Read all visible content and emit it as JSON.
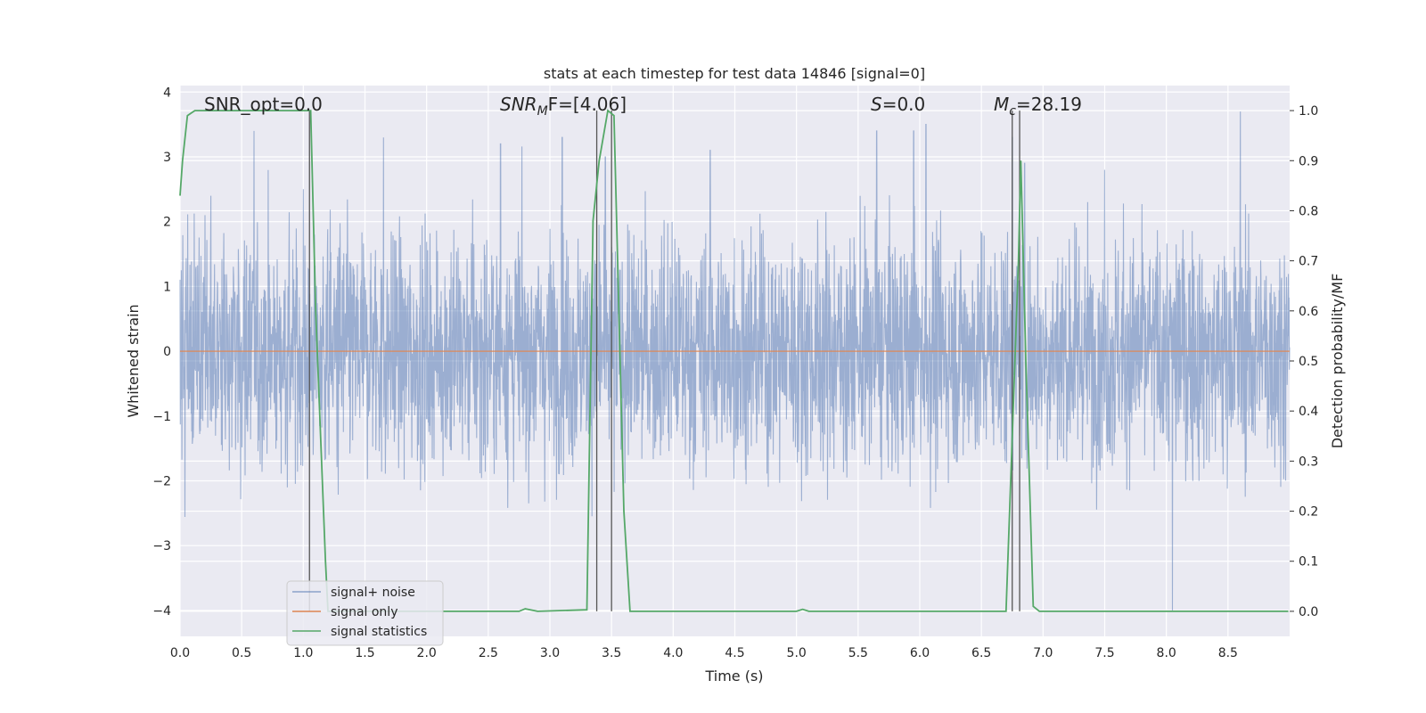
{
  "chart_data": {
    "type": "line",
    "title": "stats at each timestep for test data 14846 [signal=0]",
    "xlabel": "Time (s)",
    "ylabel": "Whitened strain",
    "y2label": "Detection probability/MF",
    "xlim": [
      0,
      9.0
    ],
    "ylim": [
      -4.4,
      4.1
    ],
    "y2lim": [
      -0.05,
      1.05
    ],
    "xticks": [
      "0.0",
      "0.5",
      "1.0",
      "1.5",
      "2.0",
      "2.5",
      "3.0",
      "3.5",
      "4.0",
      "4.5",
      "5.0",
      "5.5",
      "6.0",
      "6.5",
      "7.0",
      "7.5",
      "8.0",
      "8.5"
    ],
    "yticks": [
      "4",
      "3",
      "2",
      "1",
      "0",
      "−1",
      "−2",
      "−3",
      "−4"
    ],
    "y2ticks": [
      "1.0",
      "0.9",
      "0.8",
      "0.7",
      "0.6",
      "0.5",
      "0.4",
      "0.3",
      "0.2",
      "0.1",
      "0.0"
    ],
    "annotations": {
      "snr_opt": "SNR_opt=0.0",
      "snr_mf_prefix": "SNR",
      "snr_mf_sub": "M",
      "snr_mf_suffix": "F=[4.06]",
      "s_symbol": "S",
      "s_value": "=0.0",
      "mc_symbol": "M",
      "mc_sub": "c",
      "mc_value": "=28.19"
    },
    "series": [
      {
        "name": "signal+ noise",
        "color": "#4c72b0",
        "axis": "left",
        "description_noise_sd": 0.9,
        "envelope_peaks_time": [
          0.25,
          0.6,
          1.0,
          1.65,
          2.6,
          3.1,
          3.45,
          4.3,
          5.65,
          5.95,
          6.05,
          6.75,
          6.85,
          7.5,
          8.05,
          8.6
        ],
        "envelope_peaks_value": [
          2.4,
          3.4,
          2.5,
          3.3,
          3.2,
          3.3,
          3.0,
          3.1,
          3.4,
          3.4,
          3.5,
          3.3,
          2.9,
          2.8,
          -4.0,
          3.7
        ]
      },
      {
        "name": "signal only",
        "color": "#dd8452",
        "axis": "left",
        "x": [
          0.0,
          9.0
        ],
        "values": [
          0,
          0
        ]
      },
      {
        "name": "signal statistics",
        "color": "#55a868",
        "axis": "right",
        "x": [
          0.0,
          0.02,
          0.06,
          0.12,
          0.5,
          1.0,
          1.06,
          1.1,
          1.18,
          1.2,
          1.5,
          2.0,
          2.5,
          2.75,
          2.8,
          2.9,
          3.3,
          3.35,
          3.4,
          3.47,
          3.52,
          3.6,
          3.65,
          4.0,
          5.0,
          5.05,
          5.1,
          5.5,
          6.0,
          6.5,
          6.7,
          6.75,
          6.8,
          6.82,
          6.86,
          6.92,
          6.97,
          7.0,
          8.0,
          8.99
        ],
        "values": [
          0.83,
          0.9,
          0.99,
          1.0,
          1.0,
          1.0,
          1.0,
          0.6,
          0.1,
          0.0,
          0.0,
          0.0,
          0.0,
          0.0,
          0.005,
          0.0,
          0.003,
          0.78,
          0.9,
          1.0,
          0.99,
          0.2,
          0.0,
          0.0,
          0.0,
          0.004,
          0.0,
          0.0,
          0.0,
          0.0,
          0.0,
          0.35,
          0.7,
          0.9,
          0.5,
          0.01,
          0.0,
          0.0,
          0.0,
          0.0
        ]
      }
    ],
    "vlines_time": [
      1.05,
      3.38,
      3.5,
      6.75,
      6.81
    ],
    "vlines_color": "#555555",
    "legend": {
      "placement": "lower-left",
      "items": [
        "signal+ noise",
        "signal only",
        "signal statistics"
      ]
    },
    "grid": true,
    "background": "#eaeaf2"
  }
}
